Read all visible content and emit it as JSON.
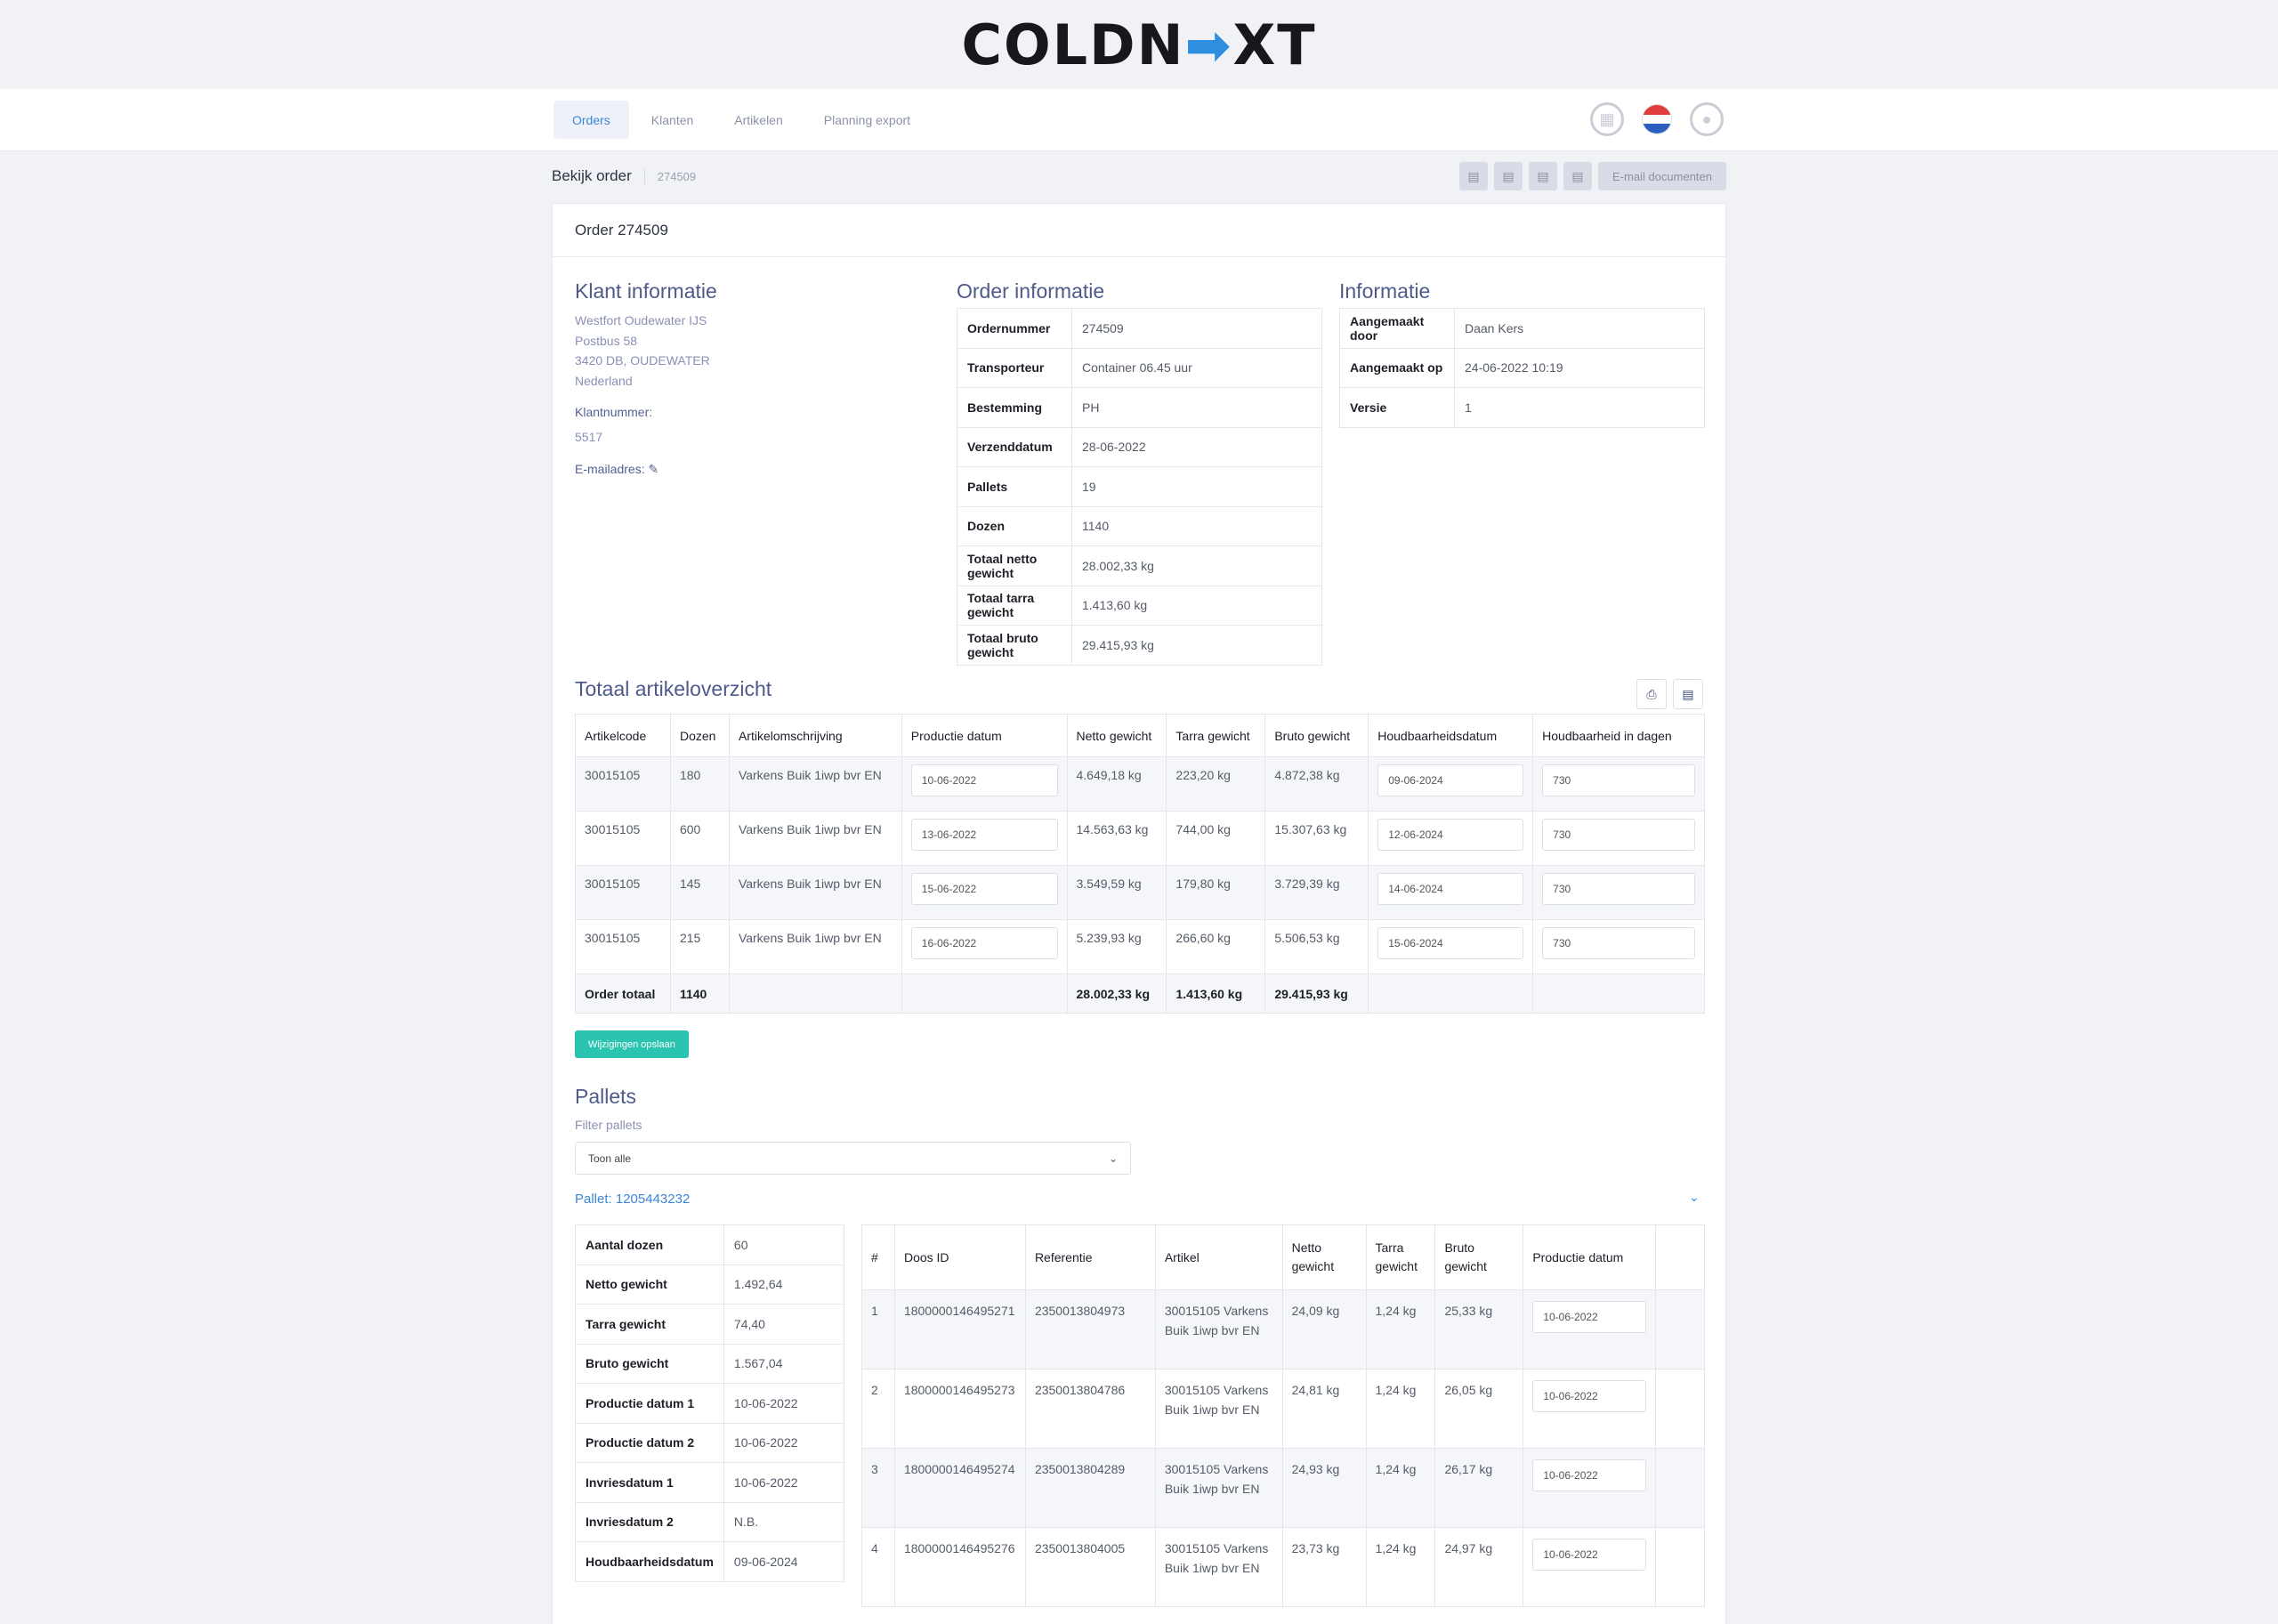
{
  "brand": {
    "logo_a": "COLDN",
    "logo_x": "➡",
    "logo_b": "XT"
  },
  "nav": {
    "tabs": [
      "Orders",
      "Klanten",
      "Artikelen",
      "Planning export"
    ],
    "active": 0
  },
  "subheader": {
    "title": "Bekijk order",
    "order_no": "274509",
    "email_button": "E-mail documenten"
  },
  "card": {
    "title": "Order 274509"
  },
  "klant": {
    "heading": "Klant informatie",
    "address": [
      "Westfort Oudewater IJS",
      "Postbus 58",
      "3420 DB, OUDEWATER",
      "Nederland"
    ],
    "klantnummer_label": "Klantnummer:",
    "klantnummer": "5517",
    "email_label": "E-mailadres: ✎"
  },
  "order_info": {
    "heading": "Order informatie",
    "rows": [
      {
        "k": "Ordernummer",
        "v": "274509"
      },
      {
        "k": "Transporteur",
        "v": "Container 06.45 uur"
      },
      {
        "k": "Bestemming",
        "v": "PH"
      },
      {
        "k": "Verzenddatum",
        "v": "28-06-2022"
      },
      {
        "k": "Pallets",
        "v": "19"
      },
      {
        "k": "Dozen",
        "v": "1140"
      },
      {
        "k": "Totaal netto gewicht",
        "v": "28.002,33 kg"
      },
      {
        "k": "Totaal tarra gewicht",
        "v": "1.413,60 kg"
      },
      {
        "k": "Totaal bruto gewicht",
        "v": "29.415,93 kg"
      }
    ]
  },
  "informatie": {
    "heading": "Informatie",
    "rows": [
      {
        "k": "Aangemaakt door",
        "v": "Daan Kers"
      },
      {
        "k": "Aangemaakt op",
        "v": "24-06-2022 10:19"
      },
      {
        "k": "Versie",
        "v": "1"
      }
    ]
  },
  "artikel": {
    "heading": "Totaal artikeloverzicht",
    "columns": [
      "Artikelcode",
      "Dozen",
      "Artikelomschrijving",
      "Productie datum",
      "Netto gewicht",
      "Tarra gewicht",
      "Bruto gewicht",
      "Houdbaarheidsdatum",
      "Houdbaarheid in dagen"
    ],
    "rows": [
      {
        "code": "30015105",
        "dozen": "180",
        "omschrijving": "Varkens Buik 1iwp bvr EN",
        "productie": "10-06-2022",
        "netto": "4.649,18 kg",
        "tarra": "223,20 kg",
        "bruto": "4.872,38 kg",
        "houdbaar": "09-06-2024",
        "dagen": "730"
      },
      {
        "code": "30015105",
        "dozen": "600",
        "omschrijving": "Varkens Buik 1iwp bvr EN",
        "productie": "13-06-2022",
        "netto": "14.563,63 kg",
        "tarra": "744,00 kg",
        "bruto": "15.307,63 kg",
        "houdbaar": "12-06-2024",
        "dagen": "730"
      },
      {
        "code": "30015105",
        "dozen": "145",
        "omschrijving": "Varkens Buik 1iwp bvr EN",
        "productie": "15-06-2022",
        "netto": "3.549,59 kg",
        "tarra": "179,80 kg",
        "bruto": "3.729,39 kg",
        "houdbaar": "14-06-2024",
        "dagen": "730"
      },
      {
        "code": "30015105",
        "dozen": "215",
        "omschrijving": "Varkens Buik 1iwp bvr EN",
        "productie": "16-06-2022",
        "netto": "5.239,93 kg",
        "tarra": "266,60 kg",
        "bruto": "5.506,53 kg",
        "houdbaar": "15-06-2024",
        "dagen": "730"
      }
    ],
    "total": {
      "label": "Order totaal",
      "dozen": "1140",
      "netto": "28.002,33 kg",
      "tarra": "1.413,60 kg",
      "bruto": "29.415,93 kg"
    },
    "save_button": "Wijzigingen opslaan"
  },
  "pallets": {
    "heading": "Pallets",
    "filter_label": "Filter pallets",
    "filter_value": "Toon alle",
    "pallet_label": "Pallet: 1205443232",
    "summary": [
      {
        "k": "Aantal dozen",
        "v": "60"
      },
      {
        "k": "Netto gewicht",
        "v": "1.492,64"
      },
      {
        "k": "Tarra gewicht",
        "v": "74,40"
      },
      {
        "k": "Bruto gewicht",
        "v": "1.567,04"
      },
      {
        "k": "Productie datum 1",
        "v": "10-06-2022"
      },
      {
        "k": "Productie datum 2",
        "v": "10-06-2022"
      },
      {
        "k": "Invriesdatum 1",
        "v": "10-06-2022"
      },
      {
        "k": "Invriesdatum 2",
        "v": "N.B."
      },
      {
        "k": "Houdbaarheidsdatum",
        "v": "09-06-2024"
      }
    ],
    "box_columns": [
      "#",
      "Doos ID",
      "Referentie",
      "Artikel",
      "Netto gewicht",
      "Tarra gewicht",
      "Bruto gewicht",
      "Productie datum",
      ""
    ],
    "boxes": [
      {
        "n": "1",
        "id": "1800000146495271",
        "ref": "2350013804973",
        "artikel": "30015105 Varkens Buik 1iwp bvr EN",
        "netto": "24,09 kg",
        "tarra": "1,24 kg",
        "bruto": "25,33 kg",
        "datum": "10-06-2022"
      },
      {
        "n": "2",
        "id": "1800000146495273",
        "ref": "2350013804786",
        "artikel": "30015105 Varkens Buik 1iwp bvr EN",
        "netto": "24,81 kg",
        "tarra": "1,24 kg",
        "bruto": "26,05 kg",
        "datum": "10-06-2022"
      },
      {
        "n": "3",
        "id": "1800000146495274",
        "ref": "2350013804289",
        "artikel": "30015105 Varkens Buik 1iwp bvr EN",
        "netto": "24,93 kg",
        "tarra": "1,24 kg",
        "bruto": "26,17 kg",
        "datum": "10-06-2022"
      },
      {
        "n": "4",
        "id": "1800000146495276",
        "ref": "2350013804005",
        "artikel": "30015105 Varkens Buik 1iwp bvr EN",
        "netto": "23,73 kg",
        "tarra": "1,24 kg",
        "bruto": "24,97 kg",
        "datum": "10-06-2022"
      }
    ]
  },
  "colors": {
    "accent": "#3d86d8",
    "save": "#2bc4b0",
    "heading": "#4e5a8a"
  }
}
